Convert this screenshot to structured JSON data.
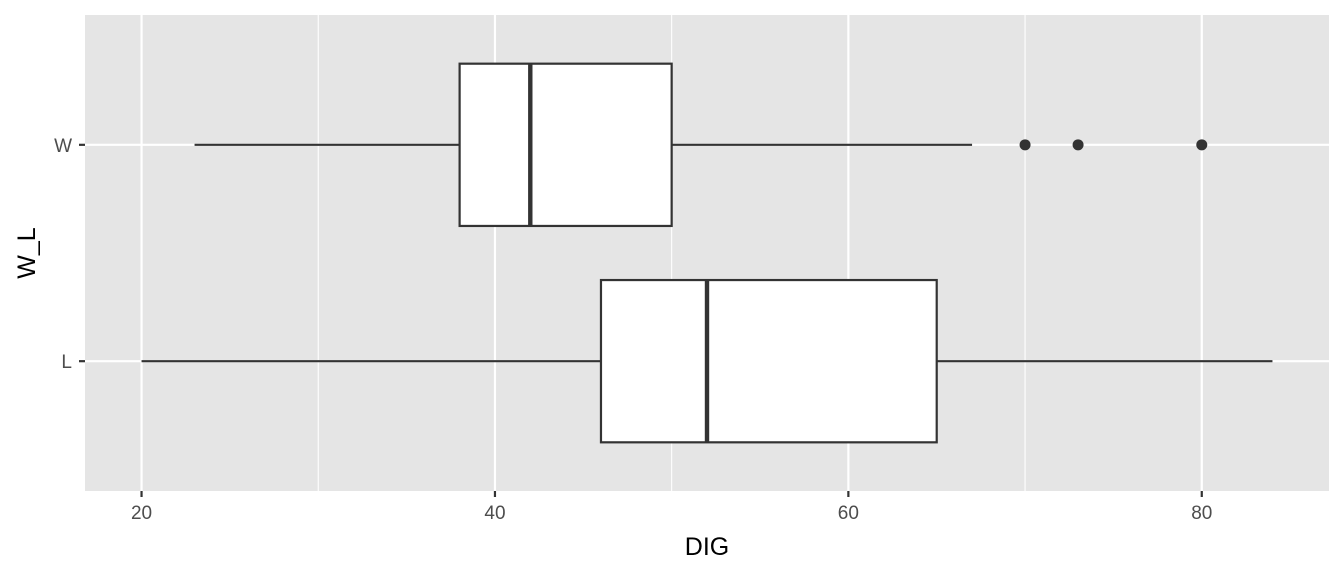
{
  "chart_data": {
    "type": "boxplot",
    "orientation": "horizontal",
    "title": "",
    "xlabel": "DIG",
    "ylabel": "W_L",
    "xlim": [
      16.8,
      87.2
    ],
    "x_ticks": [
      20,
      40,
      60,
      80
    ],
    "x_tick_labels": [
      "20",
      "40",
      "60",
      "80"
    ],
    "categories": [
      "W",
      "L"
    ],
    "grid": true,
    "legend": "none",
    "colors": {
      "panel_background": "#e5e5e5",
      "grid": "#ffffff",
      "box_fill": "#ffffff",
      "box_line": "#333333",
      "tick_text": "#4d4d4d",
      "axis_title": "#000000"
    },
    "boxes": [
      {
        "category": "W",
        "whisker_low": 23,
        "q1": 38,
        "median": 42,
        "q3": 50,
        "whisker_high": 67,
        "outliers": [
          70,
          73,
          80
        ]
      },
      {
        "category": "L",
        "whisker_low": 20,
        "q1": 46,
        "median": 52,
        "q3": 65,
        "whisker_high": 84,
        "outliers": []
      }
    ]
  }
}
